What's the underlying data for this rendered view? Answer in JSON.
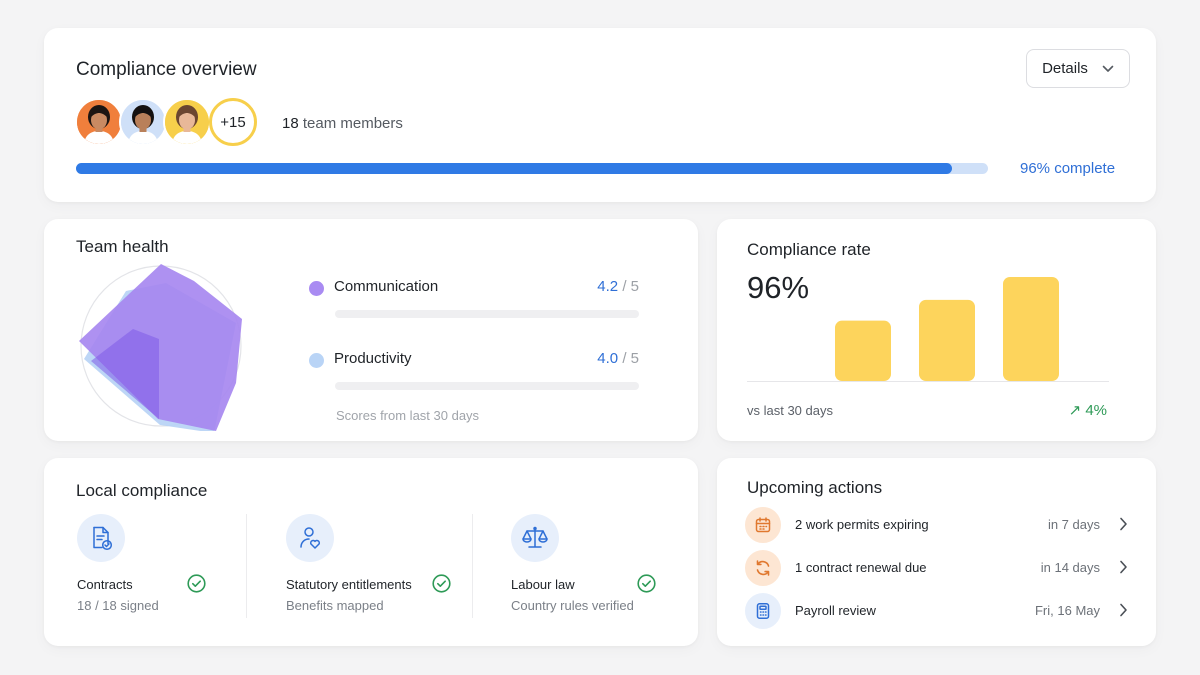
{
  "overview": {
    "title": "Compliance overview",
    "details_label": "Details",
    "avatars": [
      {
        "name": "avatar-1",
        "bg": "#f07f3c",
        "skin": "#c98a62",
        "hair": "#1d1512"
      },
      {
        "name": "avatar-2",
        "bg": "#cfe0f8",
        "skin": "#b9805a",
        "hair": "#141110"
      },
      {
        "name": "avatar-3",
        "bg": "#f7cf4b",
        "skin": "#e8b898",
        "hair": "#6b4630"
      }
    ],
    "more_count": "+15",
    "members_count": "18",
    "members_label": "team members",
    "progress_percent": 96,
    "progress_label": "96% complete"
  },
  "team_health": {
    "title": "Team health",
    "metrics": [
      {
        "name": "Communication",
        "score": "4.2",
        "denominator": "/ 5",
        "color": "#a98bf2"
      },
      {
        "name": "Productivity",
        "score": "4.0",
        "denominator": "/ 5",
        "color": "#b9d4f6"
      }
    ],
    "note": "Scores from last 30 days"
  },
  "compliance_rate": {
    "title": "Compliance rate",
    "value": "96%",
    "chart_data": {
      "type": "bar",
      "categories": [
        "",
        "",
        ""
      ],
      "values": [
        0.58,
        0.78,
        1.0
      ],
      "color": "#fdd45c"
    },
    "note": "vs last 30 days",
    "delta": "↗ 4%"
  },
  "local_compliance": {
    "title": "Local compliance",
    "items": [
      {
        "name": "Contracts",
        "sub": "18 / 18 signed",
        "icon": "contract-document-icon"
      },
      {
        "name": "Statutory entitlements",
        "sub": "Benefits mapped",
        "icon": "person-heart-icon"
      },
      {
        "name": "Labour law",
        "sub": "Country rules verified",
        "icon": "scales-icon"
      }
    ]
  },
  "upcoming_actions": {
    "title": "Upcoming actions",
    "items": [
      {
        "label": "2 work permits expiring",
        "when": "in 7 days",
        "icon": "calendar-icon",
        "bg": "#fde6d3",
        "color": "#e0782f"
      },
      {
        "label": "1 contract renewal due",
        "when": "in 14 days",
        "icon": "refresh-icon",
        "bg": "#fde6d3",
        "color": "#e0782f"
      },
      {
        "label": "Payroll review",
        "when": "Fri, 16 May",
        "icon": "calculator-icon",
        "bg": "#e7effb",
        "color": "#2f6fd6"
      }
    ]
  }
}
